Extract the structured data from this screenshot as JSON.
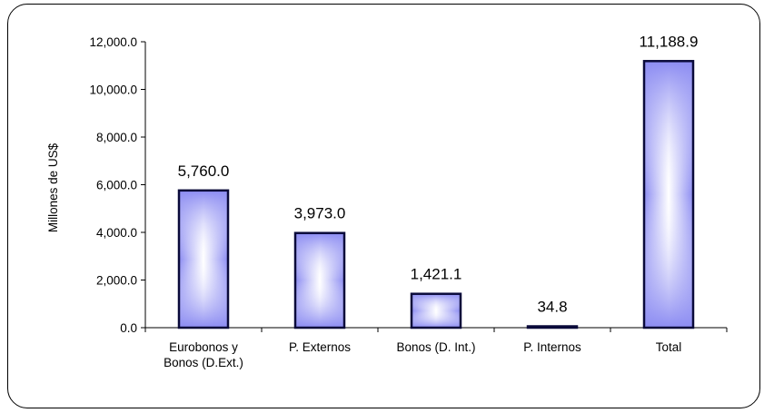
{
  "chart_data": {
    "type": "bar",
    "categories": [
      [
        "Eurobonos y",
        "Bonos (D.Ext.)"
      ],
      [
        "P. Externos"
      ],
      [
        "Bonos (D. Int.)"
      ],
      [
        "P. Internos"
      ],
      [
        "Total"
      ]
    ],
    "values": [
      5760.0,
      3973.0,
      1421.1,
      34.8,
      11188.9
    ],
    "data_labels": [
      "5,760.0",
      "3,973.0",
      "1,421.1",
      "34.8",
      "11,188.9"
    ],
    "ylabel": "Millones de US$",
    "ylim": [
      0,
      12000
    ],
    "yticks": [
      0,
      2000,
      4000,
      6000,
      8000,
      10000,
      12000
    ],
    "ytick_labels": [
      "0.0",
      "2,000.0",
      "4,000.0",
      "6,000.0",
      "8,000.0",
      "10,000.0",
      "12,000.0"
    ],
    "grid": false,
    "legend": "none",
    "colors": {
      "bar_edge": "#0a0a3a",
      "bar_center": "#ffffff",
      "bar_side": "#8c8cf2"
    }
  }
}
